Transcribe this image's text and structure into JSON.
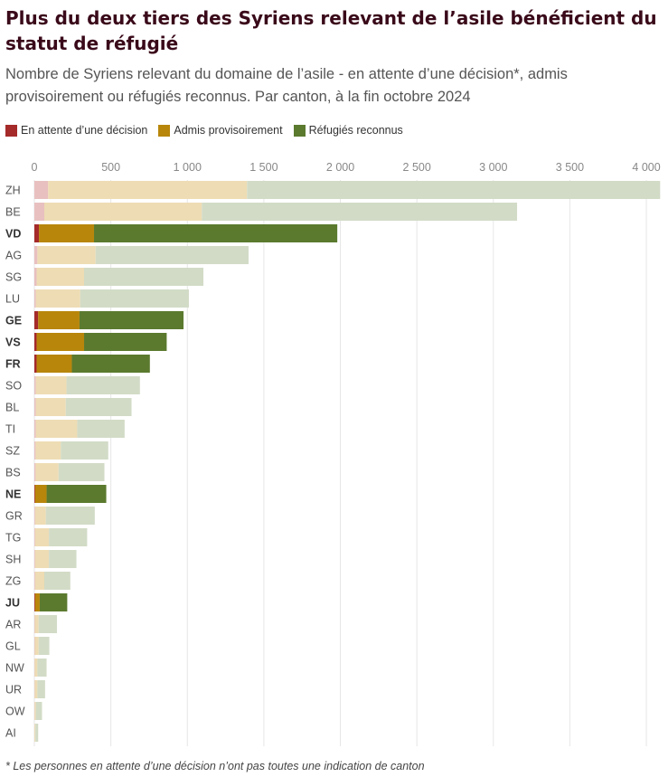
{
  "title": "Plus du deux tiers des Syriens relevant de l’asile bénéficient du statut de réfugié",
  "subtitle": "Nombre de Syriens relevant du domaine de l’asile - en attente d’une décision*, admis provisoirement ou réfugiés reconnus. Par canton, à la fin octobre 2024",
  "footnote": "* Les personnes en attente d’une décision n’ont pas toutes une indication de canton",
  "legend": [
    {
      "label": "En attente d’une décision",
      "color": "#a52a2a"
    },
    {
      "label": "Admis provisoirement",
      "color": "#b8860b"
    },
    {
      "label": "Réfugiés reconnus",
      "color": "#5b7a2e"
    }
  ],
  "colors": {
    "pending": "#a52a2a",
    "provisional": "#b8860b",
    "refugee": "#5b7a2e",
    "pending_muted": "#e8c0c0",
    "provisional_muted": "#eedcb4",
    "refugee_muted": "#d2dbc6",
    "grid": "#e6e6e6",
    "tick_text": "#888888",
    "label_text": "#555555"
  },
  "chart_data": {
    "type": "bar",
    "orientation": "horizontal",
    "stacked": true,
    "xlim": [
      0,
      4100
    ],
    "x_ticks": [
      0,
      500,
      1000,
      1500,
      2000,
      2500,
      3000,
      3500,
      4000
    ],
    "x_tick_labels": [
      "0",
      "500",
      "1 000",
      "1 500",
      "2 000",
      "2 500",
      "3 000",
      "3 500",
      "4 000"
    ],
    "grid": true,
    "categories": [
      "ZH",
      "BE",
      "VD",
      "AG",
      "SG",
      "LU",
      "GE",
      "VS",
      "FR",
      "SO",
      "BL",
      "TI",
      "SZ",
      "BS",
      "NE",
      "GR",
      "TG",
      "SH",
      "ZG",
      "JU",
      "AR",
      "GL",
      "NW",
      "UR",
      "OW",
      "AI"
    ],
    "highlighted": [
      "VD",
      "GE",
      "VS",
      "FR",
      "NE",
      "JU"
    ],
    "series": [
      {
        "name": "En attente d’une décision",
        "key": "pending",
        "values": [
          90,
          65,
          30,
          20,
          15,
          10,
          25,
          15,
          15,
          10,
          10,
          10,
          8,
          8,
          5,
          5,
          5,
          5,
          5,
          5,
          3,
          3,
          2,
          2,
          2,
          1
        ]
      },
      {
        "name": "Admis provisoirement",
        "key": "provisional",
        "values": [
          1300,
          1030,
          360,
          380,
          310,
          290,
          270,
          310,
          230,
          200,
          195,
          270,
          165,
          150,
          75,
          70,
          90,
          90,
          60,
          30,
          25,
          25,
          18,
          18,
          8,
          6
        ]
      },
      {
        "name": "Réfugiés reconnus",
        "key": "refugee",
        "values": [
          2700,
          2060,
          1590,
          1000,
          780,
          710,
          680,
          540,
          510,
          480,
          430,
          310,
          310,
          300,
          390,
          320,
          250,
          180,
          170,
          180,
          120,
          70,
          60,
          50,
          40,
          18
        ]
      }
    ]
  }
}
